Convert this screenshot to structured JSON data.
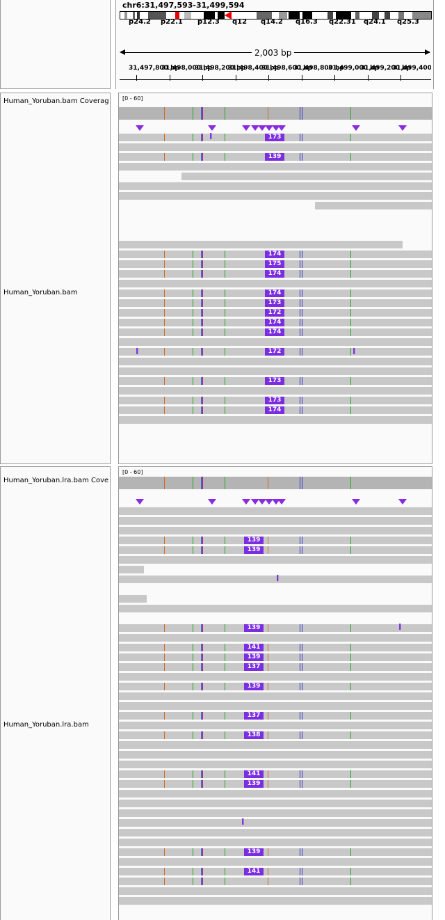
{
  "locus": "chr6:31,497,593-31,499,594",
  "bands": [
    "p24.2",
    "p22.1",
    "p12.3",
    "q12",
    "q14.2",
    "q16.3",
    "q22.31",
    "q24.1",
    "q25.3"
  ],
  "span": "2,003 bp",
  "ruler_ticks": [
    "31,497,800 bp",
    "31,498,000 bp",
    "31,498,200 bp",
    "31,498,400 bp",
    "31,498,600 bp",
    "31,498,800 bp",
    "31,499,000 bp",
    "31,499,200 bp",
    "31,499,400 bp"
  ],
  "tracks": {
    "t1_coverage": "Human_Yoruban.bam Coverage",
    "t1_reads": "Human_Yoruban.bam",
    "t1_range": "[0 - 60]",
    "t2_coverage": "Human_Yoruban.lra.bam Coverage",
    "t2_reads": "Human_Yoruban.lra.bam",
    "t2_range": "[0 - 60]"
  },
  "insertions_t1": [
    "173",
    "139",
    "174",
    "175",
    "174",
    "174",
    "173",
    "172",
    "174",
    "174",
    "172",
    "173",
    "173",
    "174"
  ],
  "insertions_t2": [
    "139",
    "139",
    "139",
    "141",
    "139",
    "137",
    "139",
    "137",
    "138",
    "141",
    "139",
    "139",
    "141"
  ],
  "colors": {
    "insertion": "#7b2ee0",
    "read": "#c8c8c8",
    "coverage": "#b4b4b4"
  }
}
